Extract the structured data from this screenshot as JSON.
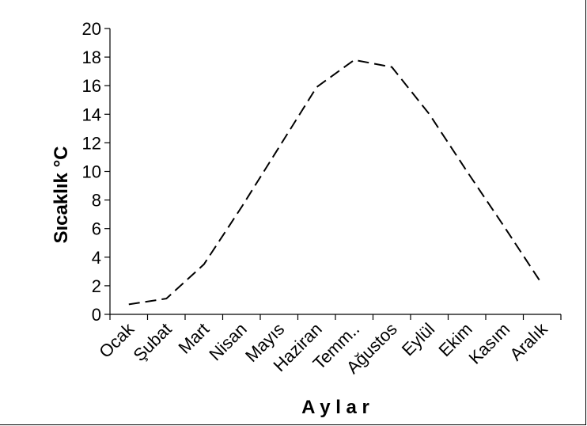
{
  "chart_data": {
    "type": "line",
    "categories": [
      "Ocak",
      "Şubat",
      "Mart",
      "Nisan",
      "Mayıs",
      "Haziran",
      "Temm..",
      "Ağustos",
      "Eylül",
      "Ekim",
      "Kasım",
      "Aralık"
    ],
    "series": [
      {
        "values": [
          0.7,
          1.1,
          3.5,
          7.5,
          11.7,
          15.9,
          17.8,
          17.3,
          14.0,
          10.0,
          6.1,
          2.1
        ],
        "color": "#000000",
        "line_style": "dashed"
      }
    ],
    "xlabel": "A y l a r",
    "ylabel": "Sıcaklık °C",
    "ylim": [
      0,
      20
    ],
    "yticks": [
      "0",
      "2",
      "4",
      "6",
      "8",
      "10",
      "12",
      "14",
      "16",
      "18",
      "20"
    ],
    "grid": false,
    "legend": "none"
  }
}
